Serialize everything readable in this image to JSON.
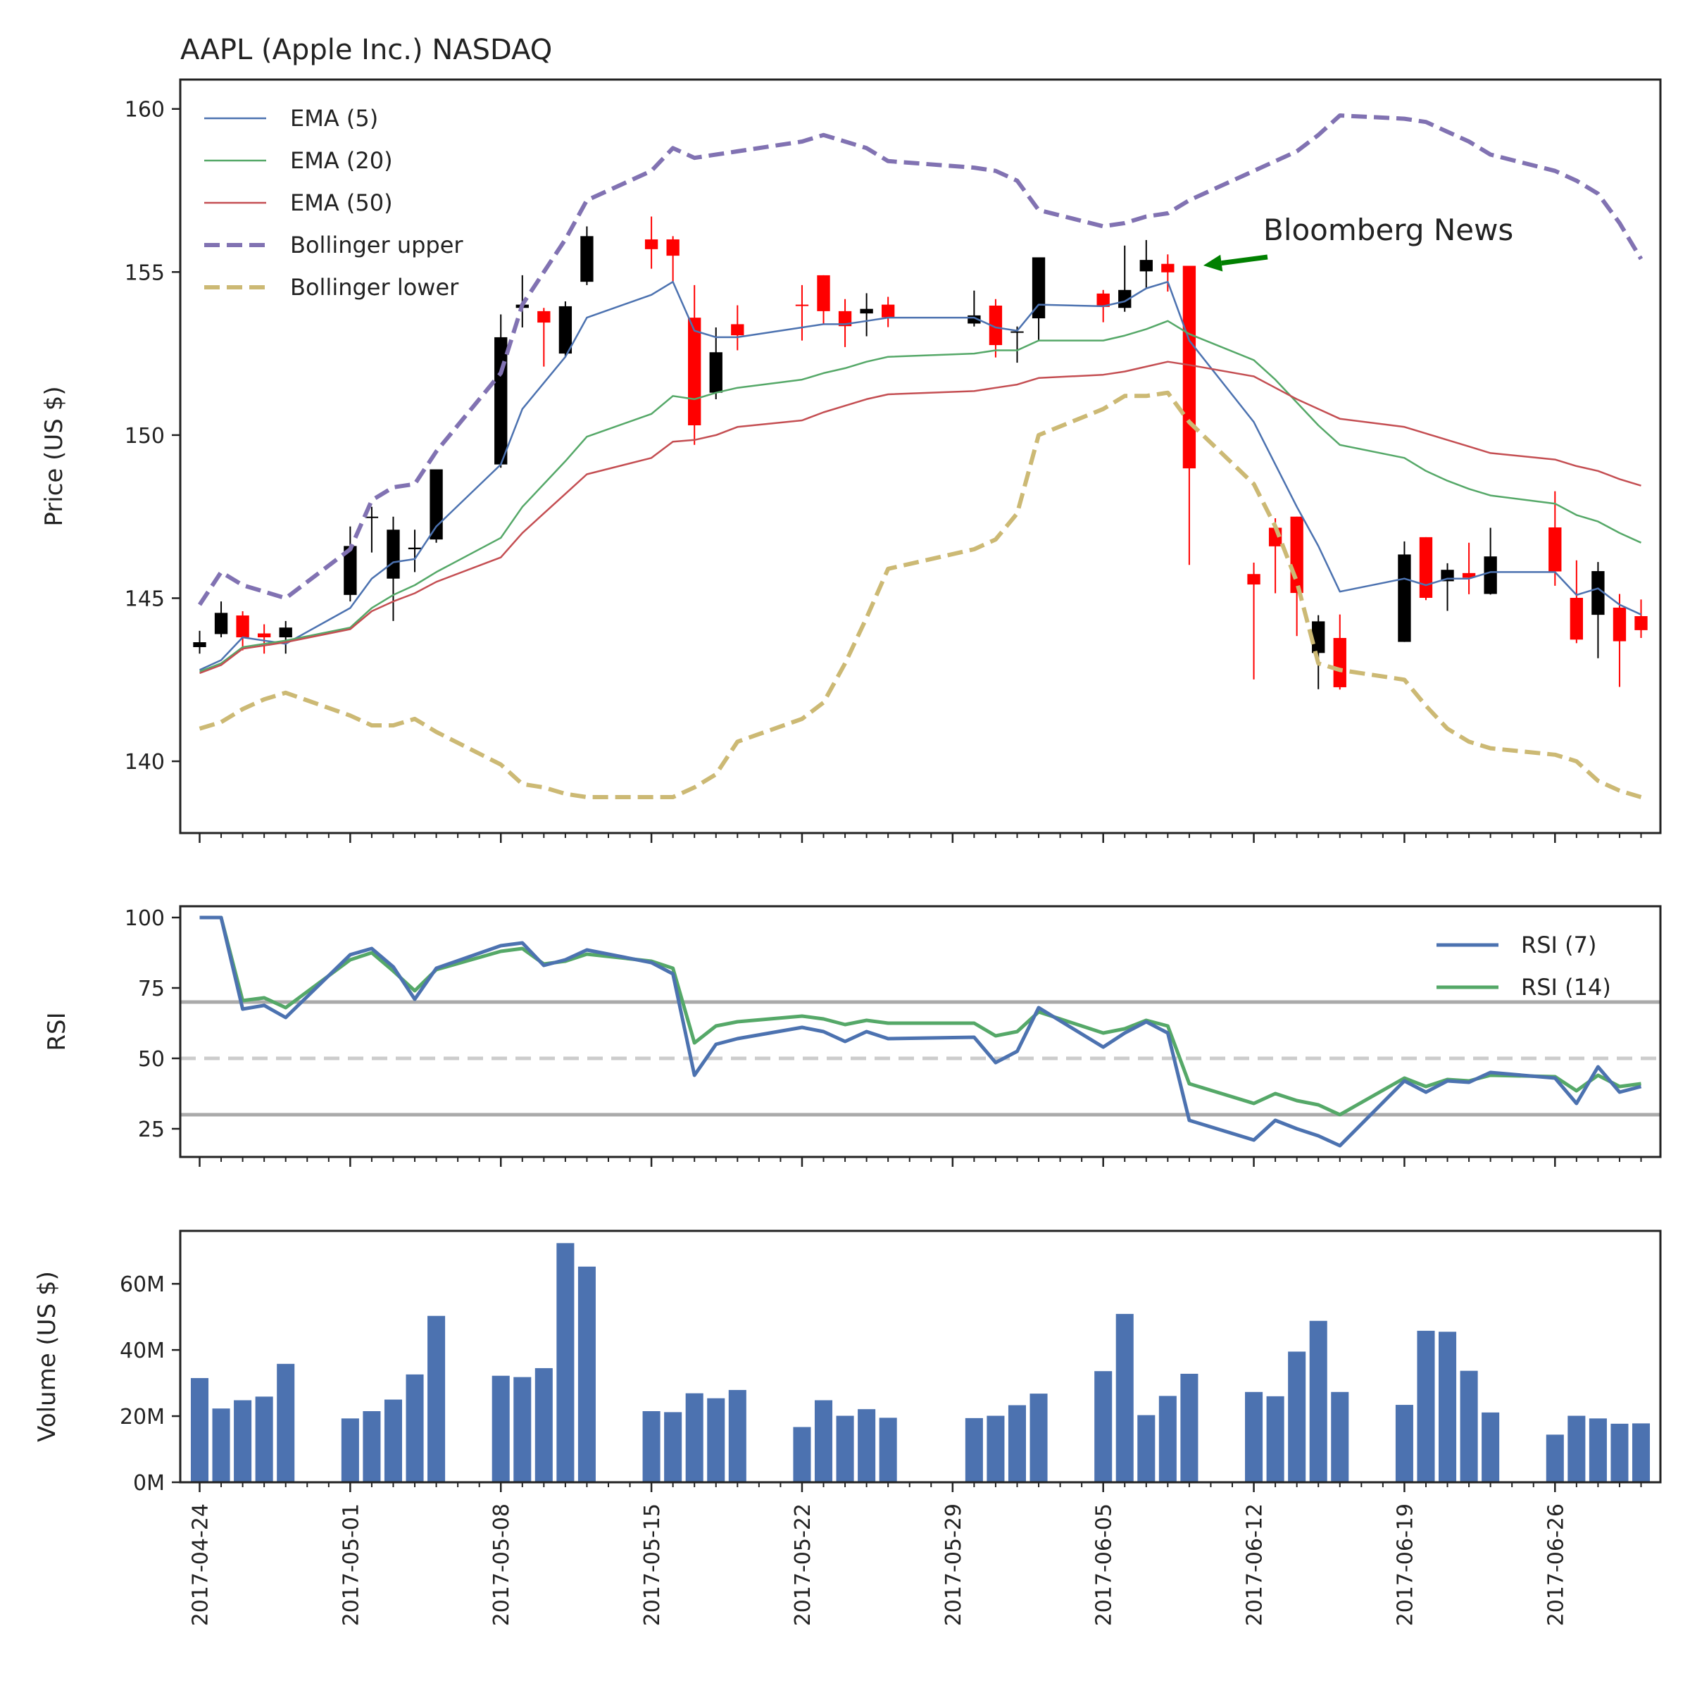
{
  "chart_data": {
    "type": "candlestick",
    "title": "AAPL (Apple Inc.) NASDAQ",
    "annotation": {
      "text": "Bloomberg News",
      "date": "2017-06-09",
      "price": 155.2,
      "arrow_color": "#008000"
    },
    "dates": [
      "2017-04-24",
      "2017-04-25",
      "2017-04-26",
      "2017-04-27",
      "2017-04-28",
      "2017-05-01",
      "2017-05-02",
      "2017-05-03",
      "2017-05-04",
      "2017-05-05",
      "2017-05-08",
      "2017-05-09",
      "2017-05-10",
      "2017-05-11",
      "2017-05-12",
      "2017-05-15",
      "2017-05-16",
      "2017-05-17",
      "2017-05-18",
      "2017-05-19",
      "2017-05-22",
      "2017-05-23",
      "2017-05-24",
      "2017-05-25",
      "2017-05-26",
      "2017-05-30",
      "2017-05-31",
      "2017-06-01",
      "2017-06-02",
      "2017-06-05",
      "2017-06-06",
      "2017-06-07",
      "2017-06-08",
      "2017-06-09",
      "2017-06-12",
      "2017-06-13",
      "2017-06-14",
      "2017-06-15",
      "2017-06-16",
      "2017-06-19",
      "2017-06-20",
      "2017-06-21",
      "2017-06-22",
      "2017-06-23",
      "2017-06-26",
      "2017-06-27",
      "2017-06-28",
      "2017-06-29",
      "2017-06-30"
    ],
    "x_ticks": [
      "2017-04-24",
      "2017-05-01",
      "2017-05-08",
      "2017-05-15",
      "2017-05-22",
      "2017-05-29",
      "2017-06-05",
      "2017-06-12",
      "2017-06-19",
      "2017-06-26"
    ],
    "price_panel": {
      "ylabel": "Price (US $)",
      "ylim": [
        137.8,
        160.9
      ],
      "yticks": [
        140,
        145,
        150,
        155,
        160
      ],
      "up_color": "#000000",
      "down_color": "#ff0000",
      "ohlc": [
        [
          143.5,
          144.0,
          143.3,
          143.65
        ],
        [
          143.9,
          144.9,
          143.8,
          144.55
        ],
        [
          144.47,
          144.6,
          143.4,
          143.8
        ],
        [
          143.92,
          144.2,
          143.3,
          143.8
        ],
        [
          143.8,
          144.3,
          143.3,
          144.1
        ],
        [
          145.1,
          147.2,
          144.9,
          146.6
        ],
        [
          147.5,
          147.8,
          146.4,
          147.5
        ],
        [
          145.6,
          147.5,
          144.3,
          147.1
        ],
        [
          146.5,
          147.1,
          145.8,
          146.55
        ],
        [
          146.8,
          148.9,
          146.7,
          148.95
        ],
        [
          149.1,
          153.7,
          149.0,
          153.0
        ],
        [
          153.9,
          154.9,
          153.3,
          154.0
        ],
        [
          153.8,
          153.9,
          152.1,
          153.45
        ],
        [
          152.5,
          154.1,
          152.4,
          153.95
        ],
        [
          154.7,
          156.4,
          154.6,
          156.1
        ],
        [
          156.0,
          156.7,
          155.1,
          155.7
        ],
        [
          156.0,
          156.1,
          154.7,
          155.5
        ],
        [
          153.6,
          154.6,
          149.7,
          150.3
        ],
        [
          151.3,
          153.3,
          151.1,
          152.54
        ],
        [
          153.4,
          153.98,
          152.6,
          153.06
        ],
        [
          154.0,
          154.6,
          152.9,
          153.99
        ],
        [
          154.9,
          154.9,
          153.4,
          153.8
        ],
        [
          153.8,
          154.17,
          152.7,
          153.34
        ],
        [
          153.73,
          154.35,
          153.03,
          153.87
        ],
        [
          154.0,
          154.24,
          153.31,
          153.61
        ],
        [
          153.42,
          154.43,
          153.33,
          153.67
        ],
        [
          153.97,
          154.17,
          152.38,
          152.76
        ],
        [
          153.17,
          153.33,
          152.22,
          153.18
        ],
        [
          153.58,
          155.45,
          152.89,
          155.45
        ],
        [
          154.34,
          154.45,
          153.46,
          153.93
        ],
        [
          153.9,
          155.81,
          153.78,
          154.45
        ],
        [
          155.02,
          155.98,
          154.48,
          155.37
        ],
        [
          155.25,
          155.54,
          154.4,
          154.99
        ],
        [
          155.19,
          155.19,
          146.02,
          148.98
        ],
        [
          145.74,
          146.09,
          142.51,
          145.42
        ],
        [
          147.16,
          147.45,
          145.15,
          146.59
        ],
        [
          147.5,
          147.5,
          143.84,
          145.16
        ],
        [
          143.32,
          144.48,
          142.21,
          144.29
        ],
        [
          143.78,
          144.5,
          142.2,
          142.27
        ],
        [
          143.66,
          146.74,
          143.66,
          146.34
        ],
        [
          146.87,
          146.87,
          144.94,
          145.01
        ],
        [
          145.52,
          146.07,
          144.61,
          145.87
        ],
        [
          145.77,
          146.7,
          145.12,
          145.63
        ],
        [
          145.13,
          147.16,
          145.11,
          146.28
        ],
        [
          147.17,
          148.28,
          145.38,
          145.82
        ],
        [
          145.01,
          146.16,
          143.62,
          143.73
        ],
        [
          144.49,
          146.11,
          143.16,
          145.83
        ],
        [
          144.71,
          145.13,
          142.28,
          143.68
        ],
        [
          144.45,
          144.96,
          143.78,
          144.02
        ]
      ],
      "series": [
        {
          "name": "EMA (5)",
          "color": "#4c72b0",
          "style": "solid",
          "values": [
            142.8,
            143.1,
            143.8,
            143.7,
            143.6,
            144.7,
            145.6,
            146.1,
            146.2,
            147.2,
            149.1,
            150.8,
            151.6,
            152.4,
            153.6,
            154.3,
            154.7,
            153.2,
            153.0,
            153.0,
            153.3,
            153.4,
            153.4,
            153.5,
            153.6,
            153.6,
            153.3,
            153.2,
            154.0,
            153.95,
            154.1,
            154.5,
            154.7,
            152.9,
            150.4,
            149.1,
            147.8,
            146.6,
            145.2,
            145.6,
            145.4,
            145.6,
            145.6,
            145.8,
            145.8,
            145.1,
            145.3,
            144.8,
            144.5
          ]
        },
        {
          "name": "EMA (20)",
          "color": "#55a868",
          "style": "solid",
          "values": [
            142.75,
            143.0,
            143.5,
            143.6,
            143.7,
            144.1,
            144.7,
            145.1,
            145.4,
            145.8,
            146.85,
            147.8,
            148.5,
            149.2,
            149.95,
            150.65,
            151.2,
            151.1,
            151.3,
            151.45,
            151.7,
            151.9,
            152.05,
            152.25,
            152.4,
            152.5,
            152.6,
            152.6,
            152.9,
            152.9,
            153.05,
            153.25,
            153.5,
            153.1,
            152.3,
            151.7,
            151.0,
            150.3,
            149.7,
            149.3,
            148.9,
            148.6,
            148.35,
            148.15,
            147.9,
            147.55,
            147.35,
            147.0,
            146.7
          ]
        },
        {
          "name": "EMA (50)",
          "color": "#c44e52",
          "style": "solid",
          "values": [
            142.7,
            142.95,
            143.45,
            143.55,
            143.65,
            144.05,
            144.6,
            144.9,
            145.15,
            145.5,
            146.25,
            147.0,
            147.6,
            148.2,
            148.8,
            149.3,
            149.8,
            149.85,
            150.0,
            150.25,
            150.45,
            150.7,
            150.9,
            151.1,
            151.25,
            151.35,
            151.45,
            151.55,
            151.75,
            151.85,
            151.95,
            152.1,
            152.25,
            152.15,
            151.8,
            151.45,
            151.1,
            150.8,
            150.5,
            150.25,
            150.05,
            149.85,
            149.65,
            149.45,
            149.25,
            149.05,
            148.9,
            148.65,
            148.45
          ]
        },
        {
          "name": "Bollinger upper",
          "color": "#8172b2",
          "style": "dashed",
          "values": [
            144.8,
            145.8,
            145.4,
            145.2,
            145.0,
            146.5,
            148.0,
            148.4,
            148.5,
            149.5,
            151.9,
            154.0,
            155.0,
            156.0,
            157.2,
            158.1,
            158.8,
            158.5,
            158.6,
            158.7,
            159.0,
            159.2,
            159.0,
            158.8,
            158.4,
            158.2,
            158.1,
            157.8,
            156.9,
            156.4,
            156.5,
            156.7,
            156.8,
            157.2,
            158.1,
            158.4,
            158.7,
            159.2,
            159.8,
            159.7,
            159.6,
            159.3,
            159.0,
            158.6,
            158.1,
            157.8,
            157.4,
            156.5,
            155.4
          ]
        },
        {
          "name": "Bollinger lower",
          "color": "#ccb974",
          "style": "dashed",
          "values": [
            141.0,
            141.2,
            141.6,
            141.9,
            142.1,
            141.4,
            141.1,
            141.1,
            141.3,
            140.9,
            139.9,
            139.3,
            139.2,
            139.0,
            138.9,
            138.9,
            138.9,
            139.2,
            139.6,
            140.6,
            141.3,
            141.8,
            143.0,
            144.4,
            145.9,
            146.5,
            146.8,
            147.6,
            150.0,
            150.8,
            151.2,
            151.2,
            151.3,
            150.4,
            148.5,
            147.2,
            145.5,
            143.0,
            142.8,
            142.5,
            141.7,
            141.0,
            140.6,
            140.4,
            140.2,
            140.0,
            139.4,
            139.1,
            138.9
          ]
        }
      ]
    },
    "rsi_panel": {
      "ylabel": "RSI",
      "ylim": [
        15,
        104
      ],
      "yticks": [
        25,
        50,
        75,
        100
      ],
      "hlines": [
        {
          "value": 70,
          "color": "#aaaaaa",
          "style": "solid"
        },
        {
          "value": 50,
          "color": "#cccccc",
          "style": "dashed"
        },
        {
          "value": 30,
          "color": "#aaaaaa",
          "style": "solid"
        }
      ],
      "legend": "upper right",
      "series": [
        {
          "name": "RSI (7)",
          "color": "#4c72b0",
          "values": [
            100,
            100,
            67.5,
            68.8,
            64.5,
            86.8,
            89,
            82.5,
            71,
            82,
            90,
            91,
            83,
            85,
            88.5,
            84,
            80,
            44,
            55,
            57,
            61,
            59.5,
            56,
            59.5,
            57,
            57.5,
            48.5,
            52.5,
            68,
            54,
            59,
            63,
            59,
            28,
            21,
            28,
            25,
            22.5,
            19,
            42,
            38,
            42,
            41.5,
            45,
            43,
            34,
            47,
            38,
            40
          ]
        },
        {
          "name": "RSI (14)",
          "color": "#55a868",
          "values": [
            100,
            100,
            70.5,
            71.5,
            68,
            85,
            87.5,
            81,
            74,
            81.5,
            88,
            89,
            83.5,
            84.5,
            87,
            84.5,
            82,
            55.5,
            61.5,
            63,
            65,
            64,
            62,
            63.5,
            62.5,
            62.5,
            58,
            59.5,
            66.5,
            59,
            60.5,
            63.5,
            61.5,
            41,
            34,
            37.5,
            35,
            33.5,
            30,
            43,
            40,
            42.5,
            42,
            44,
            43.5,
            38.5,
            44,
            40,
            41
          ]
        }
      ]
    },
    "volume_panel": {
      "ylabel": "Volume (US $)",
      "ylim": [
        0,
        76
      ],
      "yticks": [
        0,
        20,
        40,
        60
      ],
      "ytick_labels": [
        "0M",
        "20M",
        "40M",
        "60M"
      ],
      "color": "#4c72b0",
      "values": [
        31.5,
        22.3,
        24.8,
        25.9,
        35.8,
        19.3,
        21.5,
        25.0,
        32.6,
        50.3,
        32.2,
        31.8,
        34.5,
        72.3,
        65.2,
        21.5,
        21.2,
        26.9,
        25.4,
        27.9,
        16.7,
        24.8,
        20.1,
        22.1,
        19.5,
        19.4,
        20.1,
        23.3,
        26.8,
        33.6,
        50.9,
        20.3,
        26.1,
        32.8,
        27.3,
        26.0,
        39.5,
        48.8,
        27.3,
        23.4,
        45.8,
        45.5,
        33.7,
        21.1,
        14.4,
        20.1,
        19.3,
        17.7,
        17.8
      ]
    }
  }
}
